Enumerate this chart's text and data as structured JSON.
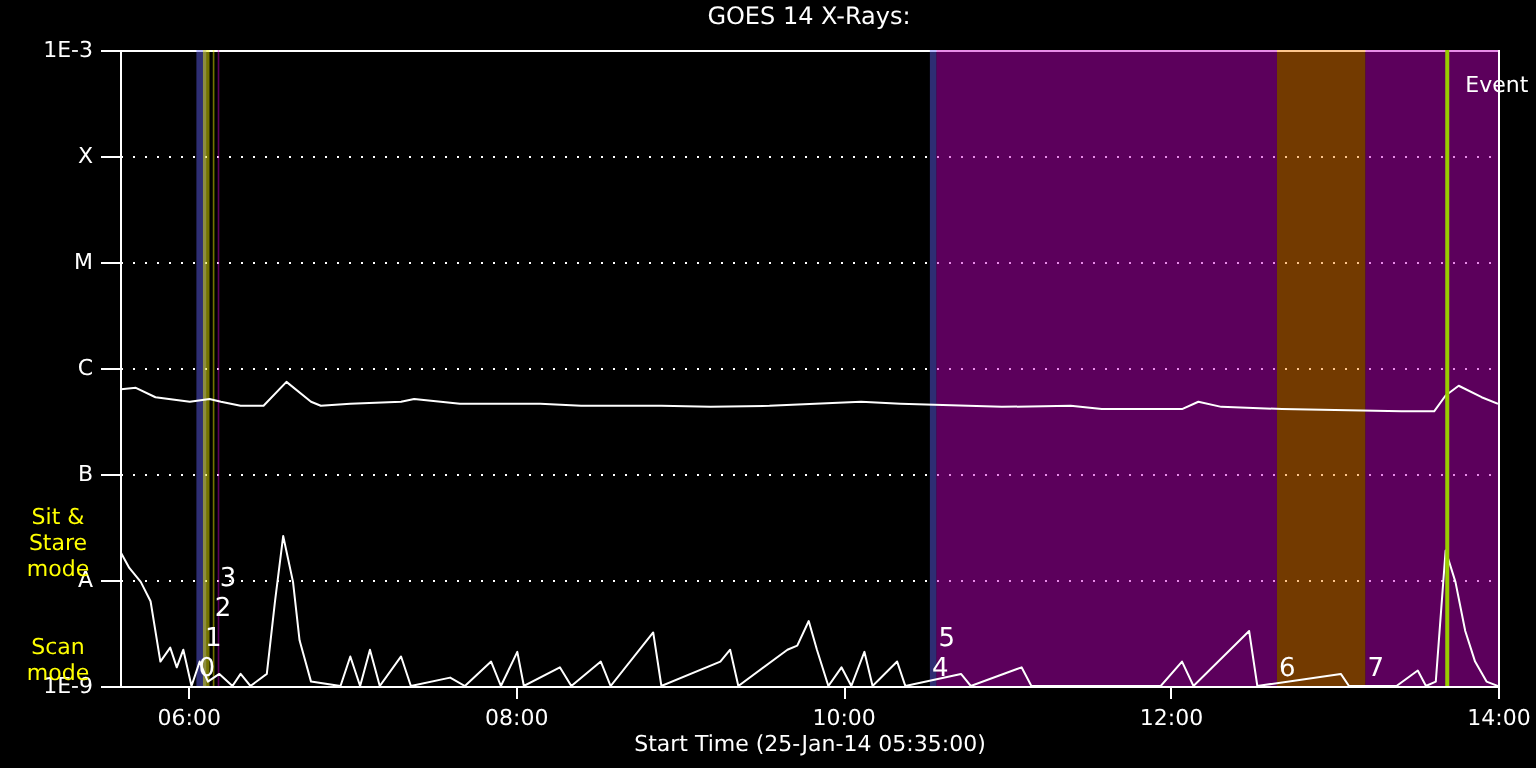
{
  "chart_data": {
    "type": "line",
    "title": "GOES 14 X-Rays:",
    "xlabel": "Start Time (25-Jan-14 05:35:00)",
    "log": "y",
    "grid": "y",
    "xlim": [
      5.5833,
      14
    ],
    "xticks": [
      {
        "value": 6,
        "label": "06:00"
      },
      {
        "value": 8,
        "label": "08:00"
      },
      {
        "value": 10,
        "label": "10:00"
      },
      {
        "value": 12,
        "label": "12:00"
      },
      {
        "value": 14,
        "label": "14:00"
      }
    ],
    "ylim": [
      1e-09,
      0.001
    ],
    "yticks": [
      {
        "value": 1e-09,
        "label": "1E-9"
      },
      {
        "value": 1e-08,
        "label": "A"
      },
      {
        "value": 1e-07,
        "label": "B"
      },
      {
        "value": 1e-06,
        "label": "C"
      },
      {
        "value": 1e-05,
        "label": "M"
      },
      {
        "value": 0.0001,
        "label": "X"
      },
      {
        "value": 0.001,
        "label": "1E-3"
      }
    ],
    "series": [
      {
        "color": "#ffffff",
        "x": [
          5.59,
          5.68,
          5.8,
          6.01,
          6.13,
          6.2,
          6.32,
          6.46,
          6.6,
          6.75,
          6.81,
          6.99,
          7.3,
          7.38,
          7.66,
          8.15,
          8.4,
          8.89,
          9.19,
          9.55,
          10.11,
          10.35,
          10.97,
          11.39,
          11.58,
          12.07,
          12.17,
          12.31,
          12.68,
          13.41,
          13.61,
          13.68,
          13.76,
          13.9,
          14.0
        ],
        "values": [
          6.3e-07,
          6.5e-07,
          5.3e-07,
          4.8e-07,
          5.1e-07,
          4.8e-07,
          4.4e-07,
          4.4e-07,
          7.4e-07,
          4.8e-07,
          4.4e-07,
          4.6e-07,
          4.8e-07,
          5.1e-07,
          4.6e-07,
          4.6e-07,
          4.4e-07,
          4.4e-07,
          4.3e-07,
          4.4e-07,
          4.8e-07,
          4.6e-07,
          4.3e-07,
          4.4e-07,
          4.1e-07,
          4.1e-07,
          4.8e-07,
          4.3e-07,
          4.1e-07,
          3.9e-07,
          3.9e-07,
          5.5e-07,
          6.8e-07,
          5.3e-07,
          4.6e-07
        ]
      },
      {
        "color": "#ffffff",
        "x": [
          5.59,
          5.64,
          5.71,
          5.77,
          5.83,
          5.89,
          5.93,
          5.97,
          6.02,
          6.07,
          6.12,
          6.19,
          6.27,
          6.32,
          6.38,
          6.48,
          6.53,
          6.58,
          6.64,
          6.68,
          6.75,
          6.93,
          6.99,
          7.05,
          7.11,
          7.17,
          7.3,
          7.36,
          7.6,
          7.69,
          7.85,
          7.91,
          8.01,
          8.05,
          8.27,
          8.34,
          8.52,
          8.58,
          8.84,
          8.89,
          9.25,
          9.31,
          9.36,
          9.66,
          9.72,
          9.79,
          9.84,
          9.91,
          9.99,
          10.05,
          10.13,
          10.18,
          10.33,
          10.38,
          10.72,
          10.78,
          11.09,
          11.15,
          11.46,
          11.94,
          12.07,
          12.14,
          12.48,
          12.53,
          13.04,
          13.09,
          13.38,
          13.51,
          13.56,
          13.62,
          13.68,
          13.74,
          13.8,
          13.86,
          13.93,
          14.0
        ],
        "values": [
          1.8e-08,
          1.3e-08,
          9.6e-09,
          6.3e-09,
          1.7e-09,
          2.3e-09,
          1.5e-09,
          2.2e-09,
          1e-09,
          1.7e-09,
          1.1e-09,
          1.3e-09,
          1e-09,
          1.3e-09,
          1e-09,
          1.3e-09,
          6.3e-09,
          2.6e-08,
          9.6e-09,
          2.7e-09,
          1.1e-09,
          1e-09,
          1.9e-09,
          1e-09,
          2.2e-09,
          1e-09,
          1.9e-09,
          1e-09,
          1.2e-09,
          1e-09,
          1.7e-09,
          1e-09,
          2.1e-09,
          1e-09,
          1.5e-09,
          1e-09,
          1.7e-09,
          1e-09,
          3.2e-09,
          1e-09,
          1.7e-09,
          2.2e-09,
          1e-09,
          2.2e-09,
          2.4e-09,
          4.1e-09,
          2.2e-09,
          1e-09,
          1.5e-09,
          1e-09,
          2.1e-09,
          1e-09,
          1.7e-09,
          1e-09,
          1.3e-09,
          1e-09,
          1.5e-09,
          1e-09,
          1e-09,
          1e-09,
          1.7e-09,
          1e-09,
          3.3e-09,
          1e-09,
          1.3e-09,
          1e-09,
          1e-09,
          1.4e-09,
          1e-09,
          1.1e-09,
          1.9e-08,
          9.6e-09,
          3.3e-09,
          1.7e-09,
          1.1e-09,
          1e-09
        ]
      }
    ],
    "bands": [
      {
        "axis": "x",
        "from": 6.05,
        "to": 6.11,
        "label": "0",
        "color": "#6666ff"
      },
      {
        "axis": "x",
        "from": 6.09,
        "to": 6.13,
        "label": "1",
        "color": "#ffff00"
      },
      {
        "axis": "x",
        "from": 6.15,
        "to": 6.16,
        "label": "2",
        "color": "#ffff00"
      },
      {
        "axis": "x",
        "from": 6.18,
        "to": 6.19,
        "label": "3",
        "color": "#cc00cc"
      },
      {
        "axis": "x",
        "from": 10.53,
        "to": 10.57,
        "label": "4",
        "color": "#6666ff"
      },
      {
        "axis": "x",
        "from": 10.57,
        "to": 12.65,
        "label": "5",
        "color": "#cc00cc"
      },
      {
        "axis": "x",
        "from": 12.65,
        "to": 13.19,
        "label": "6",
        "color": "#ff8000"
      },
      {
        "axis": "x",
        "from": 13.19,
        "to": 14.0,
        "label": "7",
        "color": "#cc00cc"
      }
    ],
    "ref_lines": [
      {
        "axis": "x",
        "value": 13.69,
        "label": "Event",
        "color": "#99cc00"
      }
    ],
    "annotations": [
      "Sit & Stare mode",
      "Scan mode"
    ]
  }
}
